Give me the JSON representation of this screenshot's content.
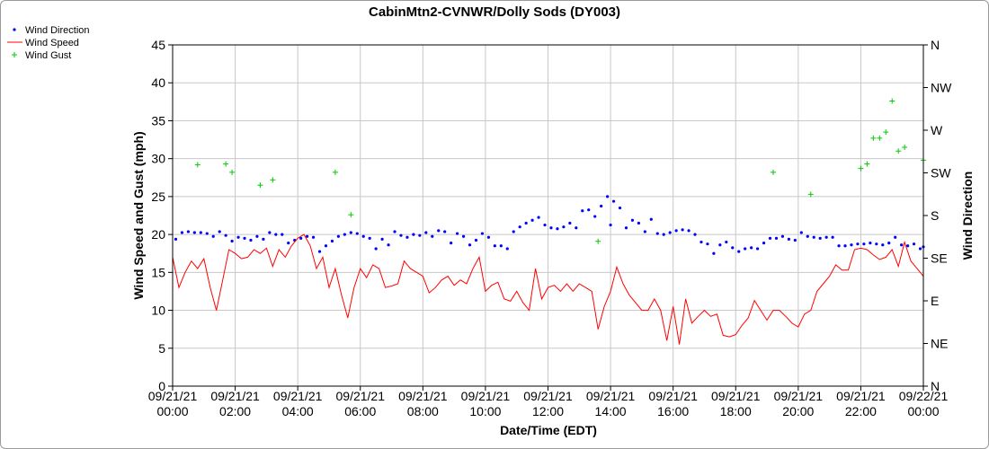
{
  "chart_data": {
    "type": "line",
    "title": "CabinMtn2-CVNWR/Dolly Sods (DY003)",
    "xlabel": "Date/Time (EDT)",
    "ylabel": "Wind Speed and Gust (mph)",
    "y2label": "Wind Direction",
    "ylim": [
      0,
      45
    ],
    "yticks": [
      0,
      5,
      10,
      15,
      20,
      25,
      30,
      35,
      40,
      45
    ],
    "y2ticks": [
      "N",
      "NE",
      "E",
      "SE",
      "S",
      "SW",
      "W",
      "NW",
      "N"
    ],
    "xlim": [
      0,
      24
    ],
    "xticks": [
      {
        "hour": 0,
        "date": "09/21/21",
        "time": "00:00"
      },
      {
        "hour": 2,
        "date": "09/21/21",
        "time": "02:00"
      },
      {
        "hour": 4,
        "date": "09/21/21",
        "time": "04:00"
      },
      {
        "hour": 6,
        "date": "09/21/21",
        "time": "06:00"
      },
      {
        "hour": 8,
        "date": "09/21/21",
        "time": "08:00"
      },
      {
        "hour": 10,
        "date": "09/21/21",
        "time": "10:00"
      },
      {
        "hour": 12,
        "date": "09/21/21",
        "time": "12:00"
      },
      {
        "hour": 14,
        "date": "09/21/21",
        "time": "14:00"
      },
      {
        "hour": 16,
        "date": "09/21/21",
        "time": "16:00"
      },
      {
        "hour": 18,
        "date": "09/21/21",
        "time": "18:00"
      },
      {
        "hour": 20,
        "date": "09/21/21",
        "time": "20:00"
      },
      {
        "hour": 22,
        "date": "09/21/21",
        "time": "22:00"
      },
      {
        "hour": 24,
        "date": "09/22/21",
        "time": "00:00"
      }
    ],
    "grid": true,
    "legend_position": "top-left",
    "series": [
      {
        "name": "Wind Direction",
        "style": "dots",
        "color": "#0000ff",
        "axis": "right",
        "points": [
          [
            0.1,
            155
          ],
          [
            0.3,
            162
          ],
          [
            0.5,
            163
          ],
          [
            0.7,
            162
          ],
          [
            0.9,
            162
          ],
          [
            1.1,
            161
          ],
          [
            1.3,
            158
          ],
          [
            1.5,
            163
          ],
          [
            1.7,
            159
          ],
          [
            1.9,
            153
          ],
          [
            2.1,
            157
          ],
          [
            2.3,
            156
          ],
          [
            2.5,
            154
          ],
          [
            2.7,
            158
          ],
          [
            2.9,
            155
          ],
          [
            3.1,
            162
          ],
          [
            3.3,
            160
          ],
          [
            3.5,
            160
          ],
          [
            3.7,
            151
          ],
          [
            3.9,
            154
          ],
          [
            4.1,
            156
          ],
          [
            4.3,
            158
          ],
          [
            4.5,
            157
          ],
          [
            4.7,
            142
          ],
          [
            4.9,
            148
          ],
          [
            5.1,
            153
          ],
          [
            5.3,
            158
          ],
          [
            5.5,
            160
          ],
          [
            5.7,
            162
          ],
          [
            5.9,
            161
          ],
          [
            6.1,
            158
          ],
          [
            6.3,
            156
          ],
          [
            6.5,
            145
          ],
          [
            6.7,
            155
          ],
          [
            6.9,
            149
          ],
          [
            7.1,
            163
          ],
          [
            7.3,
            159
          ],
          [
            7.5,
            157
          ],
          [
            7.7,
            160
          ],
          [
            7.9,
            159
          ],
          [
            8.1,
            162
          ],
          [
            8.3,
            158
          ],
          [
            8.5,
            164
          ],
          [
            8.7,
            163
          ],
          [
            8.9,
            151
          ],
          [
            9.1,
            161
          ],
          [
            9.3,
            158
          ],
          [
            9.5,
            149
          ],
          [
            9.7,
            154
          ],
          [
            9.9,
            161
          ],
          [
            10.1,
            157
          ],
          [
            10.3,
            148
          ],
          [
            10.5,
            148
          ],
          [
            10.7,
            145
          ],
          [
            10.9,
            163
          ],
          [
            11.1,
            168
          ],
          [
            11.3,
            172
          ],
          [
            11.5,
            175
          ],
          [
            11.7,
            178
          ],
          [
            11.9,
            170
          ],
          [
            12.1,
            167
          ],
          [
            12.3,
            166
          ],
          [
            12.5,
            168
          ],
          [
            12.7,
            172
          ],
          [
            12.9,
            167
          ],
          [
            13.1,
            185
          ],
          [
            13.3,
            186
          ],
          [
            13.5,
            179
          ],
          [
            13.7,
            190
          ],
          [
            13.9,
            200
          ],
          [
            14.0,
            170
          ],
          [
            14.1,
            195
          ],
          [
            14.3,
            188
          ],
          [
            14.5,
            167
          ],
          [
            14.7,
            175
          ],
          [
            14.9,
            172
          ],
          [
            15.1,
            163
          ],
          [
            15.3,
            176
          ],
          [
            15.5,
            161
          ],
          [
            15.7,
            160
          ],
          [
            15.9,
            162
          ],
          [
            16.1,
            164
          ],
          [
            16.3,
            165
          ],
          [
            16.5,
            164
          ],
          [
            16.7,
            160
          ],
          [
            16.9,
            152
          ],
          [
            17.1,
            150
          ],
          [
            17.3,
            140
          ],
          [
            17.5,
            149
          ],
          [
            17.7,
            152
          ],
          [
            17.9,
            146
          ],
          [
            18.1,
            142
          ],
          [
            18.3,
            145
          ],
          [
            18.5,
            146
          ],
          [
            18.7,
            145
          ],
          [
            18.9,
            151
          ],
          [
            19.1,
            156
          ],
          [
            19.3,
            156
          ],
          [
            19.5,
            158
          ],
          [
            19.7,
            155
          ],
          [
            19.9,
            154
          ],
          [
            20.1,
            162
          ],
          [
            20.3,
            158
          ],
          [
            20.5,
            157
          ],
          [
            20.7,
            156
          ],
          [
            20.9,
            157
          ],
          [
            21.1,
            157
          ],
          [
            21.3,
            148
          ],
          [
            21.5,
            148
          ],
          [
            21.7,
            149
          ],
          [
            21.9,
            150
          ],
          [
            22.1,
            150
          ],
          [
            22.3,
            151
          ],
          [
            22.5,
            150
          ],
          [
            22.7,
            149
          ],
          [
            22.9,
            151
          ],
          [
            23.1,
            157
          ],
          [
            23.3,
            149
          ],
          [
            23.5,
            148
          ],
          [
            23.7,
            150
          ],
          [
            23.9,
            145
          ],
          [
            24.0,
            147
          ]
        ]
      },
      {
        "name": "Wind Speed",
        "style": "line",
        "color": "#ff0000",
        "axis": "left",
        "points": [
          [
            0.0,
            17.0
          ],
          [
            0.2,
            13.0
          ],
          [
            0.4,
            15.0
          ],
          [
            0.6,
            16.5
          ],
          [
            0.8,
            15.5
          ],
          [
            1.0,
            16.8
          ],
          [
            1.2,
            13.0
          ],
          [
            1.4,
            10.0
          ],
          [
            1.6,
            14.0
          ],
          [
            1.8,
            18.0
          ],
          [
            2.0,
            17.5
          ],
          [
            2.2,
            16.8
          ],
          [
            2.4,
            17.0
          ],
          [
            2.6,
            18.0
          ],
          [
            2.8,
            17.5
          ],
          [
            3.0,
            18.2
          ],
          [
            3.2,
            15.8
          ],
          [
            3.4,
            18.0
          ],
          [
            3.6,
            17.0
          ],
          [
            3.8,
            18.5
          ],
          [
            4.0,
            19.5
          ],
          [
            4.2,
            20.0
          ],
          [
            4.4,
            18.5
          ],
          [
            4.6,
            15.5
          ],
          [
            4.8,
            17.0
          ],
          [
            5.0,
            13.0
          ],
          [
            5.2,
            15.5
          ],
          [
            5.4,
            12.0
          ],
          [
            5.6,
            9.0
          ],
          [
            5.8,
            13.0
          ],
          [
            6.0,
            15.5
          ],
          [
            6.2,
            14.3
          ],
          [
            6.4,
            16.0
          ],
          [
            6.6,
            15.5
          ],
          [
            6.8,
            13.0
          ],
          [
            7.0,
            13.2
          ],
          [
            7.2,
            13.5
          ],
          [
            7.4,
            16.5
          ],
          [
            7.6,
            15.5
          ],
          [
            7.8,
            15.0
          ],
          [
            8.0,
            14.5
          ],
          [
            8.2,
            12.3
          ],
          [
            8.4,
            13.0
          ],
          [
            8.6,
            14.0
          ],
          [
            8.8,
            14.5
          ],
          [
            9.0,
            13.3
          ],
          [
            9.2,
            14.0
          ],
          [
            9.4,
            13.5
          ],
          [
            9.6,
            15.5
          ],
          [
            9.8,
            17.0
          ],
          [
            10.0,
            12.5
          ],
          [
            10.2,
            13.3
          ],
          [
            10.4,
            13.7
          ],
          [
            10.6,
            11.5
          ],
          [
            10.8,
            11.2
          ],
          [
            11.0,
            12.5
          ],
          [
            11.2,
            11.0
          ],
          [
            11.4,
            10.0
          ],
          [
            11.6,
            15.5
          ],
          [
            11.8,
            11.5
          ],
          [
            12.0,
            13.0
          ],
          [
            12.2,
            13.3
          ],
          [
            12.4,
            12.5
          ],
          [
            12.6,
            13.5
          ],
          [
            12.8,
            12.5
          ],
          [
            13.0,
            13.5
          ],
          [
            13.2,
            13.0
          ],
          [
            13.4,
            12.5
          ],
          [
            13.6,
            7.5
          ],
          [
            13.8,
            10.5
          ],
          [
            14.0,
            12.5
          ],
          [
            14.2,
            15.7
          ],
          [
            14.4,
            13.5
          ],
          [
            14.6,
            12.0
          ],
          [
            14.8,
            11.0
          ],
          [
            15.0,
            10.0
          ],
          [
            15.2,
            10.0
          ],
          [
            15.4,
            11.5
          ],
          [
            15.6,
            10.0
          ],
          [
            15.8,
            6.0
          ],
          [
            16.0,
            10.5
          ],
          [
            16.2,
            5.5
          ],
          [
            16.4,
            11.5
          ],
          [
            16.6,
            8.3
          ],
          [
            16.8,
            9.2
          ],
          [
            17.0,
            10.0
          ],
          [
            17.2,
            9.2
          ],
          [
            17.4,
            9.5
          ],
          [
            17.6,
            6.7
          ],
          [
            17.8,
            6.5
          ],
          [
            18.0,
            6.8
          ],
          [
            18.2,
            8.0
          ],
          [
            18.4,
            9.0
          ],
          [
            18.6,
            11.3
          ],
          [
            18.8,
            10.0
          ],
          [
            19.0,
            8.7
          ],
          [
            19.2,
            10.0
          ],
          [
            19.4,
            10.0
          ],
          [
            19.6,
            9.2
          ],
          [
            19.8,
            8.3
          ],
          [
            20.0,
            7.8
          ],
          [
            20.2,
            9.5
          ],
          [
            20.4,
            10.0
          ],
          [
            20.6,
            12.5
          ],
          [
            20.8,
            13.5
          ],
          [
            21.0,
            14.5
          ],
          [
            21.2,
            16.0
          ],
          [
            21.4,
            15.3
          ],
          [
            21.6,
            15.3
          ],
          [
            21.8,
            18.0
          ],
          [
            22.0,
            18.2
          ],
          [
            22.2,
            18.0
          ],
          [
            22.4,
            17.3
          ],
          [
            22.6,
            16.7
          ],
          [
            22.8,
            17.0
          ],
          [
            23.0,
            18.0
          ],
          [
            23.2,
            15.8
          ],
          [
            23.4,
            19.0
          ],
          [
            23.6,
            16.5
          ],
          [
            23.8,
            15.5
          ],
          [
            24.0,
            14.5
          ]
        ]
      },
      {
        "name": "Wind Gust",
        "style": "plus",
        "color": "#00cc00",
        "axis": "left",
        "points": [
          [
            0.8,
            29.2
          ],
          [
            1.7,
            29.3
          ],
          [
            1.9,
            28.2
          ],
          [
            2.8,
            26.5
          ],
          [
            3.2,
            27.2
          ],
          [
            5.2,
            28.2
          ],
          [
            5.7,
            22.6
          ],
          [
            13.6,
            19.1
          ],
          [
            19.2,
            28.2
          ],
          [
            20.4,
            25.3
          ],
          [
            22.0,
            28.7
          ],
          [
            22.2,
            29.3
          ],
          [
            22.4,
            32.7
          ],
          [
            22.6,
            32.7
          ],
          [
            22.8,
            33.5
          ],
          [
            23.0,
            37.6
          ],
          [
            23.2,
            31.0
          ],
          [
            23.4,
            31.5
          ],
          [
            24.0,
            29.8
          ]
        ]
      }
    ]
  }
}
